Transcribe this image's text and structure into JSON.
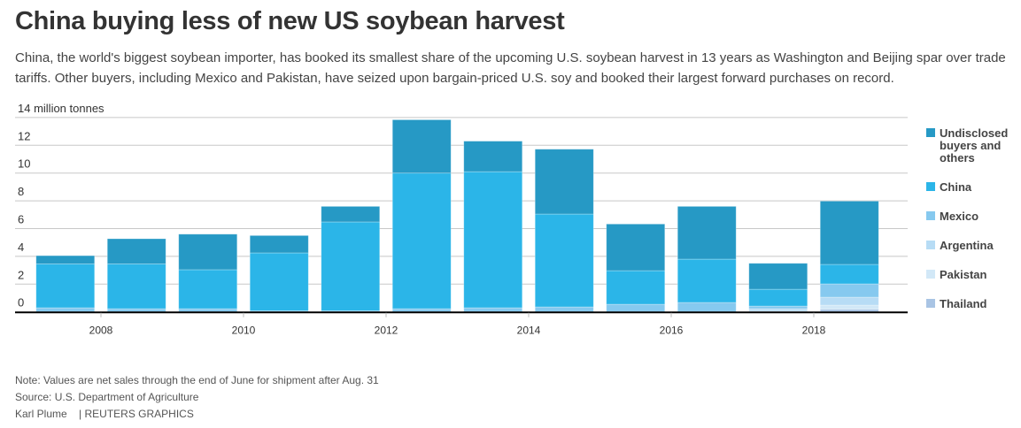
{
  "title": "China buying less of new US soybean harvest",
  "subtitle": "China, the world's biggest soybean importer, has booked its smallest share of the upcoming U.S. soybean harvest in 13 years as Washington and Beijing spar over trade tariffs. Other buyers, including Mexico and Pakistan, have seized upon bargain-priced U.S. soy and booked their largest forward purchases on record.",
  "footer": {
    "note": "Note: Values are net sales through the end of June for shipment after Aug. 31",
    "source": "Source: U.S. Department of Agriculture",
    "author": "Karl Plume",
    "brand": "| REUTERS GRAPHICS"
  },
  "chart_data": {
    "type": "bar",
    "stacked": true,
    "ylabel": "million tonnes",
    "top_tick_label": "14 million tonnes",
    "ylim": [
      0,
      14
    ],
    "yticks": [
      0,
      2,
      4,
      6,
      8,
      10,
      12,
      14
    ],
    "xticks": [
      2008,
      2010,
      2012,
      2014,
      2016,
      2018
    ],
    "categories": [
      2007,
      2008,
      2009,
      2010,
      2011,
      2012,
      2013,
      2014,
      2015,
      2016,
      2017,
      2018
    ],
    "legend_position": "right",
    "series": [
      {
        "name": "Thailand",
        "color": "#a9c4e4",
        "values": [
          0,
          0,
          0,
          0,
          0,
          0,
          0,
          0,
          0,
          0,
          0,
          0.19
        ]
      },
      {
        "name": "Pakistan",
        "color": "#d2e8f7",
        "values": [
          0,
          0,
          0,
          0,
          0,
          0,
          0,
          0,
          0,
          0,
          0.05,
          0.3
        ]
      },
      {
        "name": "Argentina",
        "color": "#b7dcf5",
        "values": [
          0,
          0,
          0,
          0,
          0,
          0,
          0,
          0,
          0,
          0,
          0.18,
          0.57
        ]
      },
      {
        "name": "Mexico",
        "color": "#86c9ef",
        "values": [
          0.3,
          0.23,
          0.23,
          0.08,
          0.08,
          0.23,
          0.3,
          0.36,
          0.55,
          0.68,
          0.19,
          0.96
        ]
      },
      {
        "name": "China",
        "color": "#2bb5e8",
        "values": [
          3.16,
          3.23,
          2.81,
          4.17,
          6.4,
          9.77,
          9.8,
          6.69,
          2.42,
          3.12,
          1.21,
          1.4
        ]
      },
      {
        "name": "Undisclosed buyers and others",
        "color": "#2699c5",
        "values": [
          0.59,
          1.81,
          2.56,
          1.25,
          1.12,
          3.84,
          2.2,
          4.67,
          3.36,
          3.8,
          1.87,
          4.56
        ]
      }
    ],
    "legend_order": [
      "Undisclosed buyers and others",
      "China",
      "Mexico",
      "Argentina",
      "Pakistan",
      "Thailand"
    ]
  }
}
